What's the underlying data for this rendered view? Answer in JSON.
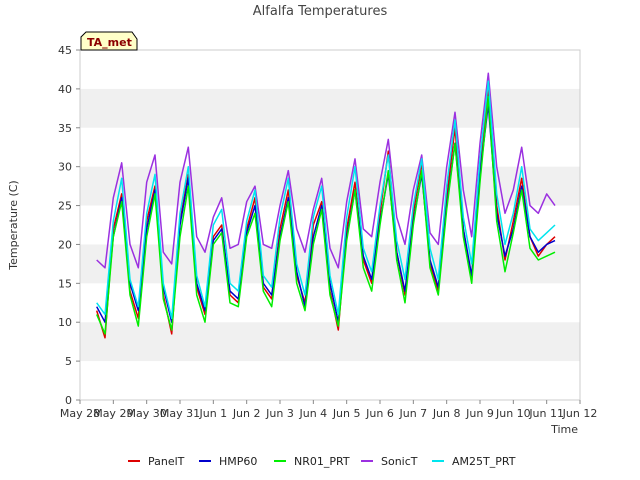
{
  "chart_data": {
    "type": "line",
    "title": "Alfalfa Temperatures",
    "xlabel": "Time",
    "ylabel": "Temperature (C)",
    "badge": "TA_met",
    "x_ticks": [
      "May 28",
      "May 29",
      "May 30",
      "May 31",
      "Jun 1",
      "Jun 2",
      "Jun 3",
      "Jun 4",
      "Jun 5",
      "Jun 6",
      "Jun 7",
      "Jun 8",
      "Jun 9",
      "Jun 10",
      "Jun 11",
      "Jun 12"
    ],
    "xlim": [
      "2015-05-28",
      "2015-06-12"
    ],
    "ylim": [
      0,
      45
    ],
    "y_ticks": [
      0,
      5,
      10,
      15,
      20,
      25,
      30,
      35,
      40,
      45
    ],
    "grid": "horizontal bands",
    "legend_position": "bottom",
    "x": [
      "2015-05-28T12:00",
      "2015-05-28T18:00",
      "2015-05-29T00:00",
      "2015-05-29T06:00",
      "2015-05-29T12:00",
      "2015-05-29T18:00",
      "2015-05-30T00:00",
      "2015-05-30T06:00",
      "2015-05-30T12:00",
      "2015-05-30T18:00",
      "2015-05-31T00:00",
      "2015-05-31T06:00",
      "2015-05-31T12:00",
      "2015-05-31T18:00",
      "2015-06-01T00:00",
      "2015-06-01T06:00",
      "2015-06-01T12:00",
      "2015-06-01T18:00",
      "2015-06-02T00:00",
      "2015-06-02T06:00",
      "2015-06-02T12:00",
      "2015-06-02T18:00",
      "2015-06-03T00:00",
      "2015-06-03T06:00",
      "2015-06-03T12:00",
      "2015-06-03T18:00",
      "2015-06-04T00:00",
      "2015-06-04T06:00",
      "2015-06-04T12:00",
      "2015-06-04T18:00",
      "2015-06-05T00:00",
      "2015-06-05T06:00",
      "2015-06-05T12:00",
      "2015-06-05T18:00",
      "2015-06-06T00:00",
      "2015-06-06T06:00",
      "2015-06-06T12:00",
      "2015-06-06T18:00",
      "2015-06-07T00:00",
      "2015-06-07T06:00",
      "2015-06-07T12:00",
      "2015-06-07T18:00",
      "2015-06-08T00:00",
      "2015-06-08T06:00",
      "2015-06-08T12:00",
      "2015-06-08T18:00",
      "2015-06-09T00:00",
      "2015-06-09T06:00",
      "2015-06-09T12:00",
      "2015-06-09T18:00",
      "2015-06-10T00:00",
      "2015-06-10T06:00",
      "2015-06-10T12:00",
      "2015-06-10T18:00",
      "2015-06-11T00:00",
      "2015-06-11T06:00"
    ],
    "series": [
      {
        "name": "PanelT",
        "color": "#dd0000",
        "values": [
          11.5,
          8.0,
          22.0,
          26.5,
          14.0,
          10.5,
          23.0,
          27.5,
          13.5,
          8.5,
          23.0,
          29.0,
          14.5,
          11.0,
          21.0,
          22.5,
          13.5,
          12.5,
          22.0,
          26.0,
          14.5,
          13.0,
          22.0,
          27.0,
          16.0,
          12.5,
          22.5,
          25.5,
          14.0,
          9.0,
          22.0,
          28.0,
          18.0,
          15.0,
          24.0,
          32.0,
          19.0,
          13.5,
          24.0,
          30.5,
          17.5,
          14.0,
          26.0,
          35.0,
          22.0,
          15.5,
          30.0,
          40.0,
          25.0,
          18.0,
          23.0,
          28.5,
          21.0,
          18.5,
          20.0,
          21.0
        ]
      },
      {
        "name": "HMP60",
        "color": "#0000cc",
        "values": [
          12.0,
          10.0,
          21.0,
          26.0,
          15.0,
          11.5,
          22.0,
          27.0,
          14.5,
          10.0,
          22.5,
          28.5,
          15.0,
          11.5,
          20.5,
          22.0,
          14.0,
          13.0,
          21.5,
          25.0,
          15.0,
          13.5,
          21.0,
          26.0,
          16.5,
          12.0,
          21.0,
          25.0,
          15.0,
          10.0,
          21.0,
          27.0,
          18.5,
          15.5,
          23.0,
          29.0,
          19.0,
          14.0,
          23.0,
          29.0,
          18.0,
          14.5,
          25.0,
          33.0,
          22.0,
          16.0,
          29.0,
          38.0,
          24.0,
          18.5,
          22.0,
          27.5,
          21.0,
          19.0,
          20.0,
          20.5
        ]
      },
      {
        "name": "NR01_PRT",
        "color": "#00ee00",
        "values": [
          11.0,
          8.5,
          21.0,
          25.5,
          13.5,
          9.5,
          21.0,
          26.5,
          13.0,
          9.0,
          21.0,
          27.5,
          13.5,
          10.0,
          20.0,
          21.5,
          12.5,
          12.0,
          21.0,
          24.0,
          14.0,
          12.0,
          20.5,
          25.5,
          15.0,
          11.5,
          20.0,
          24.5,
          13.5,
          9.5,
          20.5,
          27.0,
          17.0,
          14.0,
          22.5,
          29.5,
          18.0,
          12.5,
          22.5,
          29.5,
          17.0,
          13.5,
          24.5,
          33.0,
          21.0,
          15.0,
          28.0,
          39.0,
          23.0,
          16.5,
          21.5,
          27.0,
          19.5,
          18.0,
          18.5,
          19.0
        ]
      },
      {
        "name": "SonicT",
        "color": "#9b30e0",
        "values": [
          18.0,
          17.0,
          26.0,
          30.5,
          20.0,
          17.0,
          28.0,
          31.5,
          19.0,
          17.5,
          28.0,
          32.5,
          21.0,
          19.0,
          23.5,
          26.0,
          19.5,
          20.0,
          25.5,
          27.5,
          20.0,
          19.5,
          25.0,
          29.5,
          22.0,
          19.0,
          24.5,
          28.5,
          19.5,
          17.0,
          25.5,
          31.0,
          22.0,
          21.0,
          28.0,
          33.5,
          23.5,
          20.0,
          27.0,
          31.5,
          21.5,
          20.0,
          30.0,
          37.0,
          27.0,
          21.0,
          33.0,
          42.0,
          30.0,
          24.0,
          27.0,
          32.5,
          25.0,
          24.0,
          26.5,
          25.0
        ]
      },
      {
        "name": "AM25T_PRT",
        "color": "#00e5ee",
        "values": [
          12.5,
          11.0,
          23.0,
          28.5,
          15.5,
          12.0,
          24.0,
          29.0,
          15.0,
          10.5,
          24.0,
          30.0,
          16.0,
          12.0,
          22.5,
          24.5,
          15.0,
          14.0,
          23.0,
          27.0,
          16.0,
          14.5,
          23.5,
          28.5,
          17.5,
          13.5,
          23.5,
          27.5,
          16.0,
          11.0,
          23.5,
          30.0,
          19.5,
          16.5,
          25.0,
          31.5,
          20.5,
          15.5,
          25.0,
          31.0,
          19.5,
          15.5,
          27.5,
          36.0,
          23.5,
          17.5,
          31.0,
          41.0,
          26.5,
          20.0,
          24.0,
          30.0,
          22.0,
          20.5,
          21.5,
          22.5
        ]
      }
    ]
  }
}
